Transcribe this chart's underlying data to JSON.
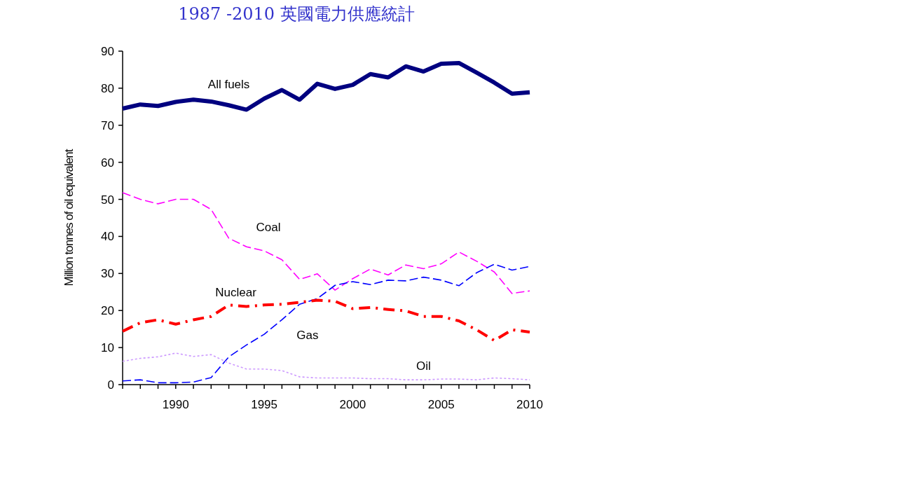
{
  "chart_data": {
    "type": "line",
    "title": "1987 -2010 英國電力供應統計",
    "ylabel": "Million tonnes of oil equivalent",
    "x": [
      1987,
      1988,
      1989,
      1990,
      1991,
      1992,
      1993,
      1994,
      1995,
      1996,
      1997,
      1998,
      1999,
      2000,
      2001,
      2002,
      2003,
      2004,
      2005,
      2006,
      2007,
      2008,
      2009,
      2010
    ],
    "series": [
      {
        "name": "All fuels",
        "color": "#000080",
        "line_style": "solid",
        "values": [
          74.5,
          75.6,
          75.2,
          76.3,
          76.9,
          76.4,
          75.4,
          74.2,
          77.2,
          79.5,
          76.9,
          81.2,
          79.8,
          80.9,
          83.8,
          82.9,
          85.9,
          84.5,
          86.6,
          86.8,
          84.2,
          81.5,
          78.5,
          78.9
        ]
      },
      {
        "name": "Coal",
        "color": "#ff00ff",
        "line_style": "dashed",
        "values": [
          51.8,
          50,
          48.8,
          50,
          50,
          47.3,
          39.5,
          37.2,
          36.1,
          33.7,
          28.4,
          29.9,
          25.5,
          28.6,
          31.2,
          29.6,
          32.3,
          31.3,
          32.6,
          35.8,
          33.3,
          30.4,
          24.6,
          25.3
        ]
      },
      {
        "name": "Gas",
        "color": "#0000ff",
        "line_style": "dashed",
        "values": [
          1.0,
          1.3,
          0.5,
          0.5,
          0.7,
          1.9,
          7.5,
          10.7,
          13.6,
          17.5,
          21.7,
          23.2,
          26.8,
          27.8,
          27.0,
          28.2,
          28.0,
          29.0,
          28.2,
          26.7,
          30.2,
          32.5,
          30.9,
          31.9
        ]
      },
      {
        "name": "Nuclear",
        "color": "#ff0000",
        "line_style": "dashdot",
        "values": [
          14.4,
          16.7,
          17.5,
          16.3,
          17.5,
          18.4,
          21.5,
          21.1,
          21.5,
          21.7,
          22.2,
          22.8,
          22.5,
          20.5,
          20.8,
          20.3,
          19.9,
          18.4,
          18.4,
          17.2,
          14.8,
          11.9,
          14.8,
          14.2
        ]
      },
      {
        "name": "Oil",
        "color": "#cc99ff",
        "line_style": "dotted",
        "values": [
          6.3,
          7.1,
          7.5,
          8.5,
          7.6,
          8.1,
          5.8,
          4.2,
          4.2,
          3.8,
          2.1,
          1.8,
          1.8,
          1.8,
          1.6,
          1.6,
          1.3,
          1.3,
          1.5,
          1.5,
          1.3,
          1.8,
          1.6,
          1.3
        ]
      }
    ],
    "xlim": [
      1987,
      2010
    ],
    "ylim": [
      0,
      90
    ],
    "xticks": [
      {
        "value": 1987,
        "label": null
      },
      {
        "value": 1988,
        "label": null
      },
      {
        "value": 1989,
        "label": null
      },
      1990,
      {
        "value": 1991,
        "label": null
      },
      {
        "value": 1992,
        "label": null
      },
      {
        "value": 1993,
        "label": null
      },
      {
        "value": 1994,
        "label": null
      },
      1995,
      {
        "value": 1996,
        "label": null
      },
      {
        "value": 1997,
        "label": null
      },
      {
        "value": 1998,
        "label": null
      },
      {
        "value": 1999,
        "label": null
      },
      2000,
      {
        "value": 2001,
        "label": null
      },
      {
        "value": 2002,
        "label": null
      },
      {
        "value": 2003,
        "label": null
      },
      {
        "value": 2004,
        "label": null
      },
      2005,
      {
        "value": 2006,
        "label": null
      },
      {
        "value": 2007,
        "label": null
      },
      {
        "value": 2008,
        "label": null
      },
      {
        "value": 2009,
        "label": null
      },
      2010
    ],
    "yticks": [
      0,
      10,
      20,
      30,
      40,
      50,
      60,
      70,
      80,
      90
    ],
    "marker": "none"
  }
}
